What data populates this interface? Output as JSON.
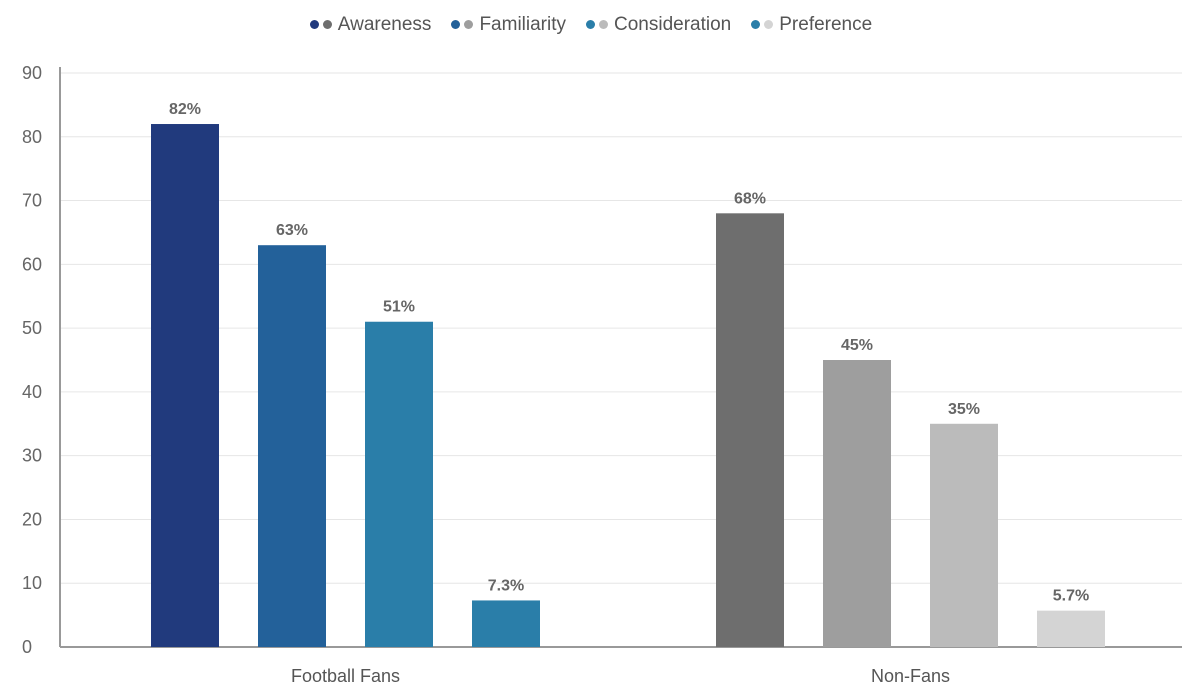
{
  "chart_data": {
    "type": "bar",
    "categories": [
      "Football Fans",
      "Non-Fans"
    ],
    "series": [
      {
        "name": "Awareness",
        "values": [
          82,
          68
        ],
        "labels": [
          "82%",
          "68%"
        ],
        "colors": [
          "#213a7d",
          "#6e6e6e"
        ]
      },
      {
        "name": "Familiarity",
        "values": [
          63,
          45
        ],
        "labels": [
          "63%",
          "45%"
        ],
        "colors": [
          "#23619a",
          "#9e9e9e"
        ]
      },
      {
        "name": "Consideration",
        "values": [
          51,
          35
        ],
        "labels": [
          "51%",
          "35%"
        ],
        "colors": [
          "#2a7ea9",
          "#bbbbbb"
        ]
      },
      {
        "name": "Preference",
        "values": [
          7.3,
          5.7
        ],
        "labels": [
          "7.3%",
          "5.7%"
        ],
        "colors": [
          "#2a7ea9",
          "#d4d4d4"
        ]
      }
    ],
    "yticks": [
      "0",
      "10",
      "20",
      "30",
      "40",
      "50",
      "60",
      "70",
      "80",
      "90"
    ],
    "ylim": [
      0,
      90
    ],
    "grid": true,
    "legend_position": "top-center"
  }
}
